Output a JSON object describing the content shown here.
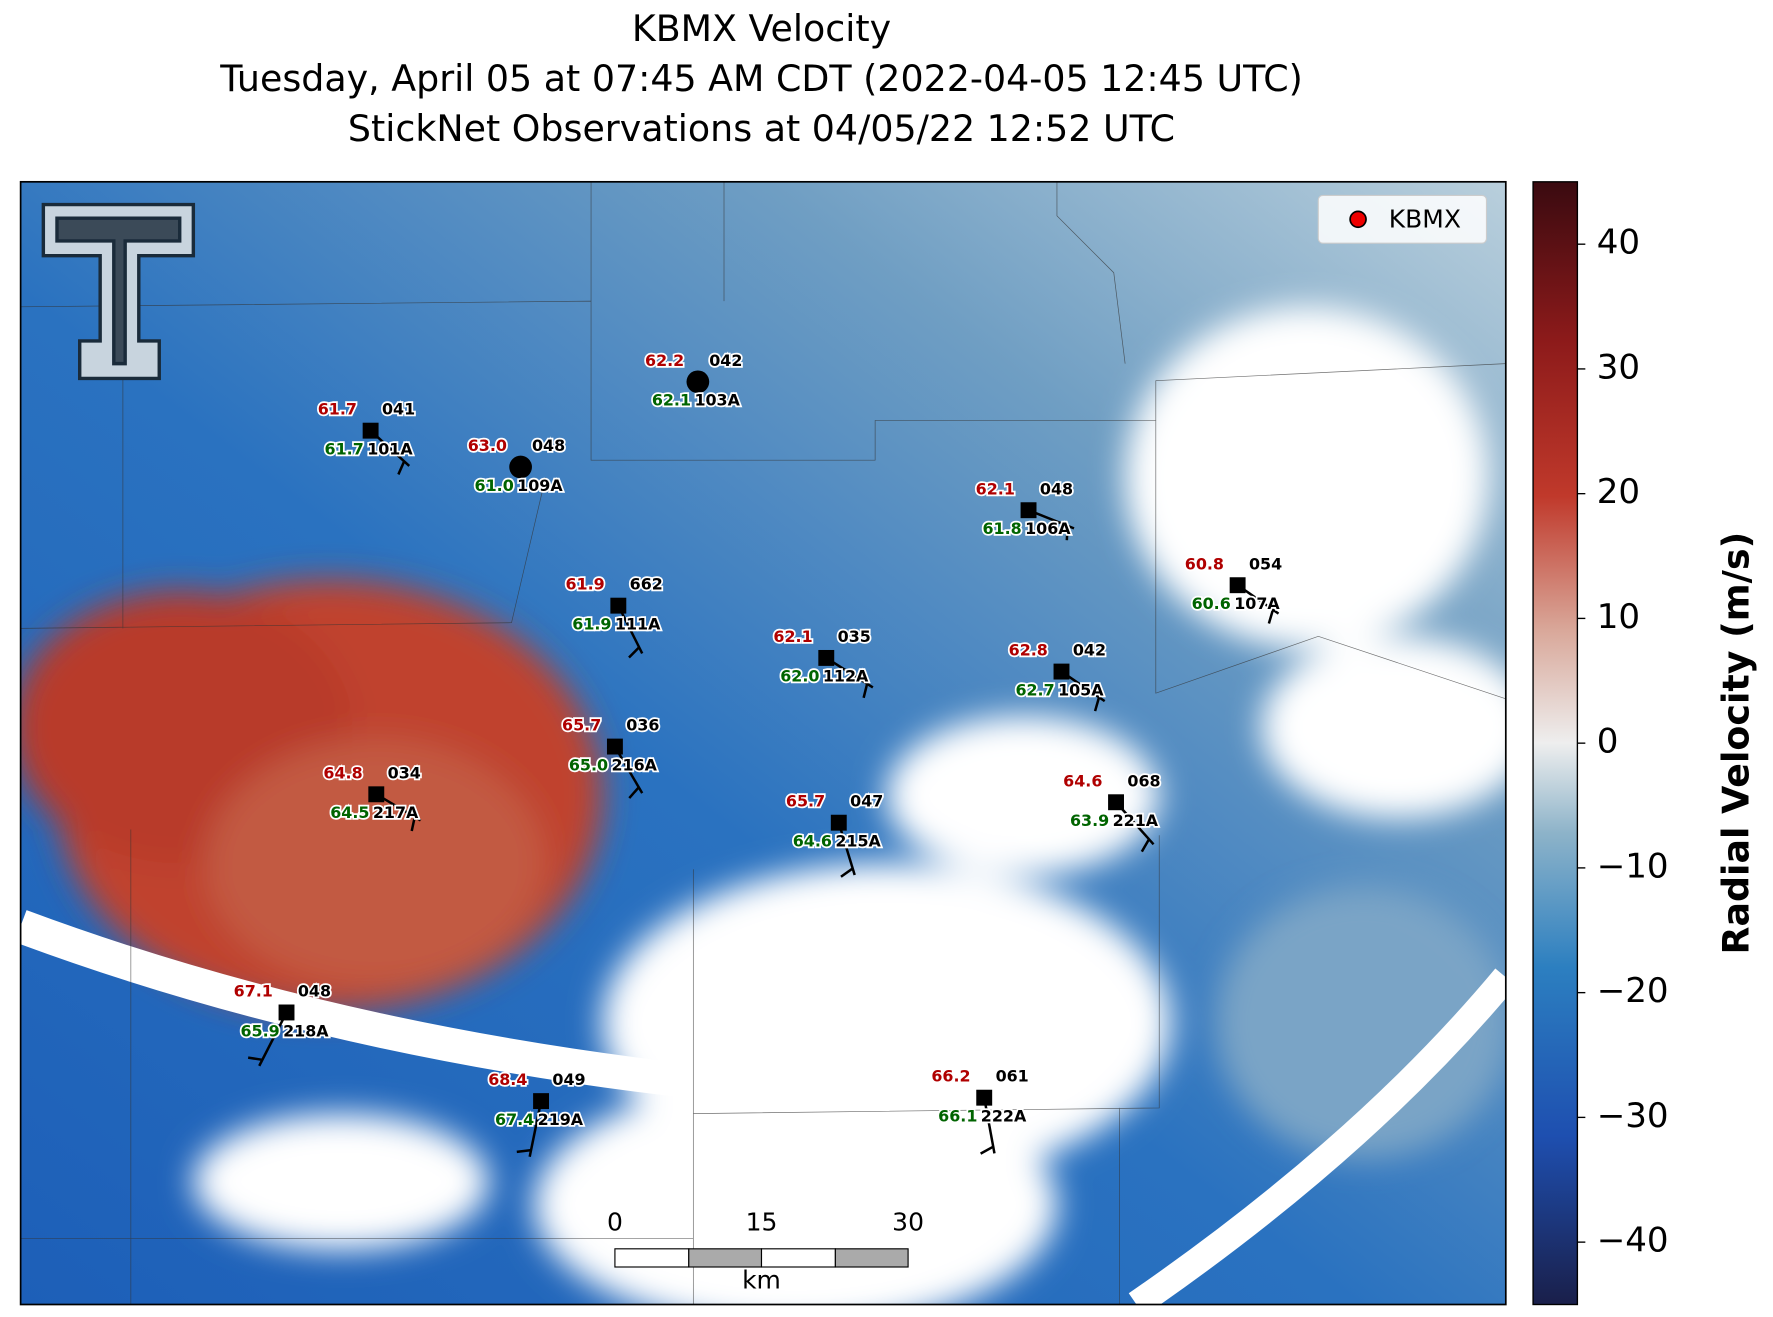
{
  "title": {
    "line1": "KBMX Velocity",
    "line2": "Tuesday, April 05 at 07:45 AM CDT (2022-04-05 12:45 UTC)",
    "line3": "StickNet Observations at 04/05/22 12:52 UTC"
  },
  "legend": {
    "label": "KBMX"
  },
  "colorbar": {
    "label": "Radial Velocity (m/s)",
    "lim": [
      -45,
      45
    ],
    "ticks": [
      {
        "value": -40,
        "label": "−40"
      },
      {
        "value": -30,
        "label": "−30"
      },
      {
        "value": -20,
        "label": "−20"
      },
      {
        "value": -10,
        "label": "−10"
      },
      0,
      10,
      20,
      30,
      40
    ]
  },
  "scale_bar": {
    "ticks": [
      "0",
      "15",
      "30"
    ],
    "unit": "km"
  },
  "stations": [
    {
      "id": "101A",
      "temperature": "61.7",
      "dewpoint": "61.7",
      "code": "041"
    },
    {
      "id": "109A",
      "temperature": "63.0",
      "dewpoint": "61.0",
      "code": "048"
    },
    {
      "id": "103A",
      "temperature": "62.2",
      "dewpoint": "62.1",
      "code": "042"
    },
    {
      "id": "106A",
      "temperature": "62.1",
      "dewpoint": "61.8",
      "code": "048"
    },
    {
      "id": "107A",
      "temperature": "60.8",
      "dewpoint": "60.6",
      "code": "054"
    },
    {
      "id": "111A",
      "temperature": "61.9",
      "dewpoint": "61.9",
      "code": "662"
    },
    {
      "id": "112A",
      "temperature": "62.1",
      "dewpoint": "62.0",
      "code": "035"
    },
    {
      "id": "105A",
      "temperature": "62.8",
      "dewpoint": "62.7",
      "code": "042"
    },
    {
      "id": "216A",
      "temperature": "65.7",
      "dewpoint": "65.0",
      "code": "036"
    },
    {
      "id": "217A",
      "temperature": "64.8",
      "dewpoint": "64.5",
      "code": "034"
    },
    {
      "id": "215A",
      "temperature": "65.7",
      "dewpoint": "64.6",
      "code": "047"
    },
    {
      "id": "221A",
      "temperature": "64.6",
      "dewpoint": "63.9",
      "code": "068"
    },
    {
      "id": "218A",
      "temperature": "67.1",
      "dewpoint": "65.9",
      "code": "048"
    },
    {
      "id": "219A",
      "temperature": "68.4",
      "dewpoint": "67.4",
      "code": "049"
    },
    {
      "id": "222A",
      "temperature": "66.2",
      "dewpoint": "66.1",
      "code": "061"
    }
  ]
}
